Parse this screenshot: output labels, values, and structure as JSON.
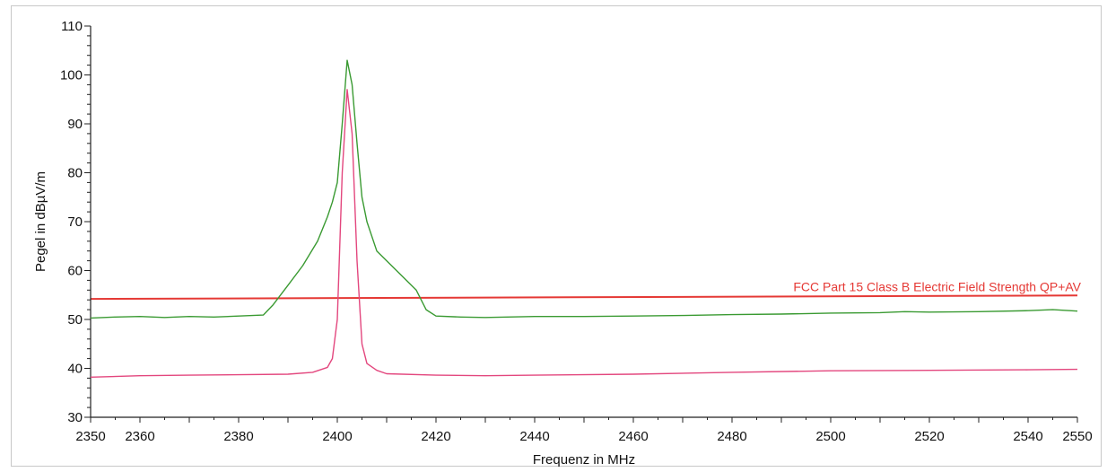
{
  "chart_data": {
    "type": "line",
    "title": "",
    "xlabel": "Frequenz in MHz",
    "ylabel": "Pegel in dBµV/m",
    "xlim": [
      2350,
      2550
    ],
    "ylim": [
      30,
      110
    ],
    "x_ticks": [
      2350,
      2360,
      2380,
      2400,
      2420,
      2440,
      2460,
      2480,
      2500,
      2520,
      2540,
      2550
    ],
    "y_ticks": [
      30,
      40,
      50,
      60,
      70,
      80,
      90,
      100,
      110
    ],
    "grid": false,
    "limit_line": {
      "label": "FCC Part 15 Class B Electric Field Strength QP+AV",
      "color": "#e53935",
      "x": [
        2350,
        2550
      ],
      "y": [
        54.2,
        54.9
      ]
    },
    "series": [
      {
        "color": "#3a9a32",
        "x": [
          2350,
          2355,
          2360,
          2365,
          2370,
          2375,
          2380,
          2385,
          2387,
          2390,
          2393,
          2396,
          2398,
          2399,
          2400,
          2401,
          2402,
          2403,
          2404,
          2405,
          2406,
          2408,
          2410,
          2412,
          2414,
          2416,
          2418,
          2420,
          2425,
          2430,
          2440,
          2450,
          2460,
          2470,
          2480,
          2490,
          2500,
          2510,
          2515,
          2520,
          2530,
          2540,
          2545,
          2550
        ],
        "values": [
          50.3,
          50.5,
          50.6,
          50.4,
          50.6,
          50.5,
          50.7,
          50.9,
          53,
          57,
          61,
          66,
          71,
          74,
          78,
          90,
          103,
          98,
          86,
          75,
          70,
          64,
          62,
          60,
          58,
          56,
          52,
          50.7,
          50.5,
          50.4,
          50.6,
          50.6,
          50.7,
          50.8,
          51,
          51.1,
          51.3,
          51.4,
          51.6,
          51.5,
          51.6,
          51.8,
          52,
          51.7
        ]
      },
      {
        "color": "#e3477e",
        "x": [
          2350,
          2360,
          2370,
          2380,
          2390,
          2395,
          2398,
          2399,
          2400,
          2401,
          2402,
          2403,
          2404,
          2405,
          2406,
          2408,
          2410,
          2420,
          2430,
          2440,
          2460,
          2480,
          2500,
          2520,
          2540,
          2550
        ],
        "values": [
          38.2,
          38.5,
          38.6,
          38.7,
          38.8,
          39.2,
          40.2,
          42,
          50,
          80,
          97,
          88,
          62,
          45,
          41,
          39.6,
          38.9,
          38.6,
          38.5,
          38.6,
          38.8,
          39.2,
          39.5,
          39.6,
          39.7,
          39.8
        ]
      }
    ]
  }
}
